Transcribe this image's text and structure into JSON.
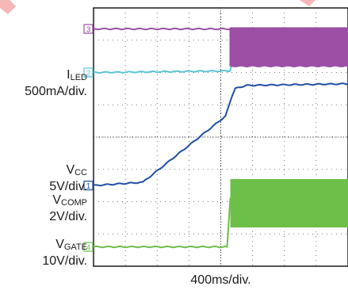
{
  "chart_data": {
    "type": "line",
    "title": "",
    "xlabel": "400ms/div.",
    "divisions": {
      "x": 8,
      "y": 8
    },
    "x_range_div": [
      0,
      8
    ],
    "grid": true,
    "legend": "none",
    "series": [
      {
        "name_main": "I",
        "name_sub": "LED",
        "scale": "500mA/div.",
        "marker": "4",
        "color": "#6cc04a",
        "points_div": [
          [
            0,
            0.6
          ],
          [
            4.2,
            0.6
          ],
          [
            4.3,
            2.1
          ],
          [
            8,
            2.1
          ]
        ],
        "envelope_after_div": [
          4.3,
          1.2,
          2.7
        ]
      },
      {
        "name_main": "V",
        "name_sub": "CC",
        "scale": "5V/div.",
        "marker": "1",
        "color": "#1f4fa6",
        "points_div": [
          [
            0,
            2.5
          ],
          [
            1.55,
            2.6
          ],
          [
            4.15,
            4.65
          ],
          [
            4.3,
            5.1
          ],
          [
            4.45,
            5.5
          ],
          [
            4.8,
            5.6
          ],
          [
            8,
            5.65
          ]
        ]
      },
      {
        "name_main": "V",
        "name_sub": "COMP",
        "scale": "2V/div.",
        "marker": "2",
        "color": "#5bc4d3",
        "points_div": [
          [
            0,
            6.0
          ],
          [
            4.3,
            6.05
          ],
          [
            4.5,
            7.0
          ],
          [
            4.8,
            7.1
          ],
          [
            8,
            7.1
          ]
        ]
      },
      {
        "name_main": "V",
        "name_sub": "GATE",
        "scale": "10V/div.",
        "marker": "3",
        "color": "#9b4fa5",
        "points_div": [
          [
            0,
            7.35
          ],
          [
            4.3,
            7.35
          ],
          [
            4.3,
            6.2
          ],
          [
            8,
            6.2
          ]
        ],
        "envelope_after_div": [
          4.3,
          6.2,
          7.4
        ]
      }
    ]
  }
}
